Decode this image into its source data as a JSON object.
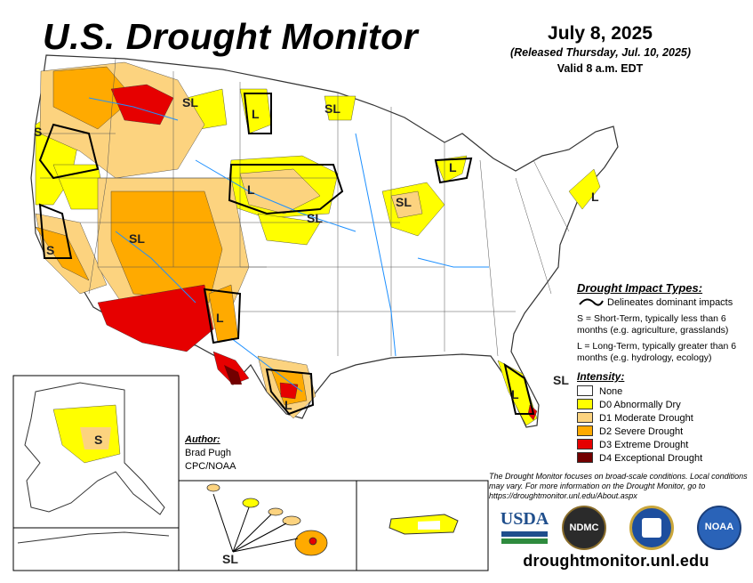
{
  "header": {
    "title": "U.S. Drought Monitor",
    "date": "July 8, 2025",
    "released": "(Released Thursday, Jul. 10, 2025)",
    "valid": "Valid 8 a.m. EDT"
  },
  "map_labels": {
    "west_coast": "S",
    "northern_rockies": "SL",
    "montana": "L",
    "dakotas": "SL",
    "plains_north": "L",
    "nebraska": "SL",
    "great_lakes": "L",
    "midwest": "SL",
    "northeast": "L",
    "california": "S",
    "southwest": "SL",
    "new_mexico": "L",
    "texas": "L",
    "florida": "L",
    "florida_south": "SL",
    "alaska": "S",
    "hawaii": "SL"
  },
  "impact": {
    "title": "Drought Impact Types:",
    "line_text": "Delineates dominant impacts",
    "s_text": "S = Short-Term, typically less than 6 months (e.g. agriculture, grasslands)",
    "l_text": "L = Long-Term, typically greater than 6 months (e.g. hydrology, ecology)"
  },
  "intensity": {
    "title": "Intensity:",
    "levels": [
      {
        "label": "None",
        "color": "#ffffff"
      },
      {
        "label": "D0 Abnormally Dry",
        "color": "#ffff00"
      },
      {
        "label": "D1 Moderate Drought",
        "color": "#fcd37f"
      },
      {
        "label": "D2 Severe Drought",
        "color": "#ffaa00"
      },
      {
        "label": "D3 Extreme Drought",
        "color": "#e60000"
      },
      {
        "label": "D4 Exceptional Drought",
        "color": "#730000"
      }
    ]
  },
  "author": {
    "title": "Author:",
    "name": "Brad Pugh",
    "org": "CPC/NOAA"
  },
  "disclaimer": "The Drought Monitor focuses on broad-scale conditions. Local conditions may vary. For more information on the Drought Monitor, go to https://droughtmonitor.unl.edu/About.aspx",
  "logos": {
    "usda": "USDA",
    "ndmc": "NDMC",
    "noaa": "NOAA",
    "commerce_icon": "commerce-seal-icon"
  },
  "website": "droughtmonitor.unl.edu",
  "colors": {
    "water": "#1e90ff",
    "border": "#333333"
  }
}
